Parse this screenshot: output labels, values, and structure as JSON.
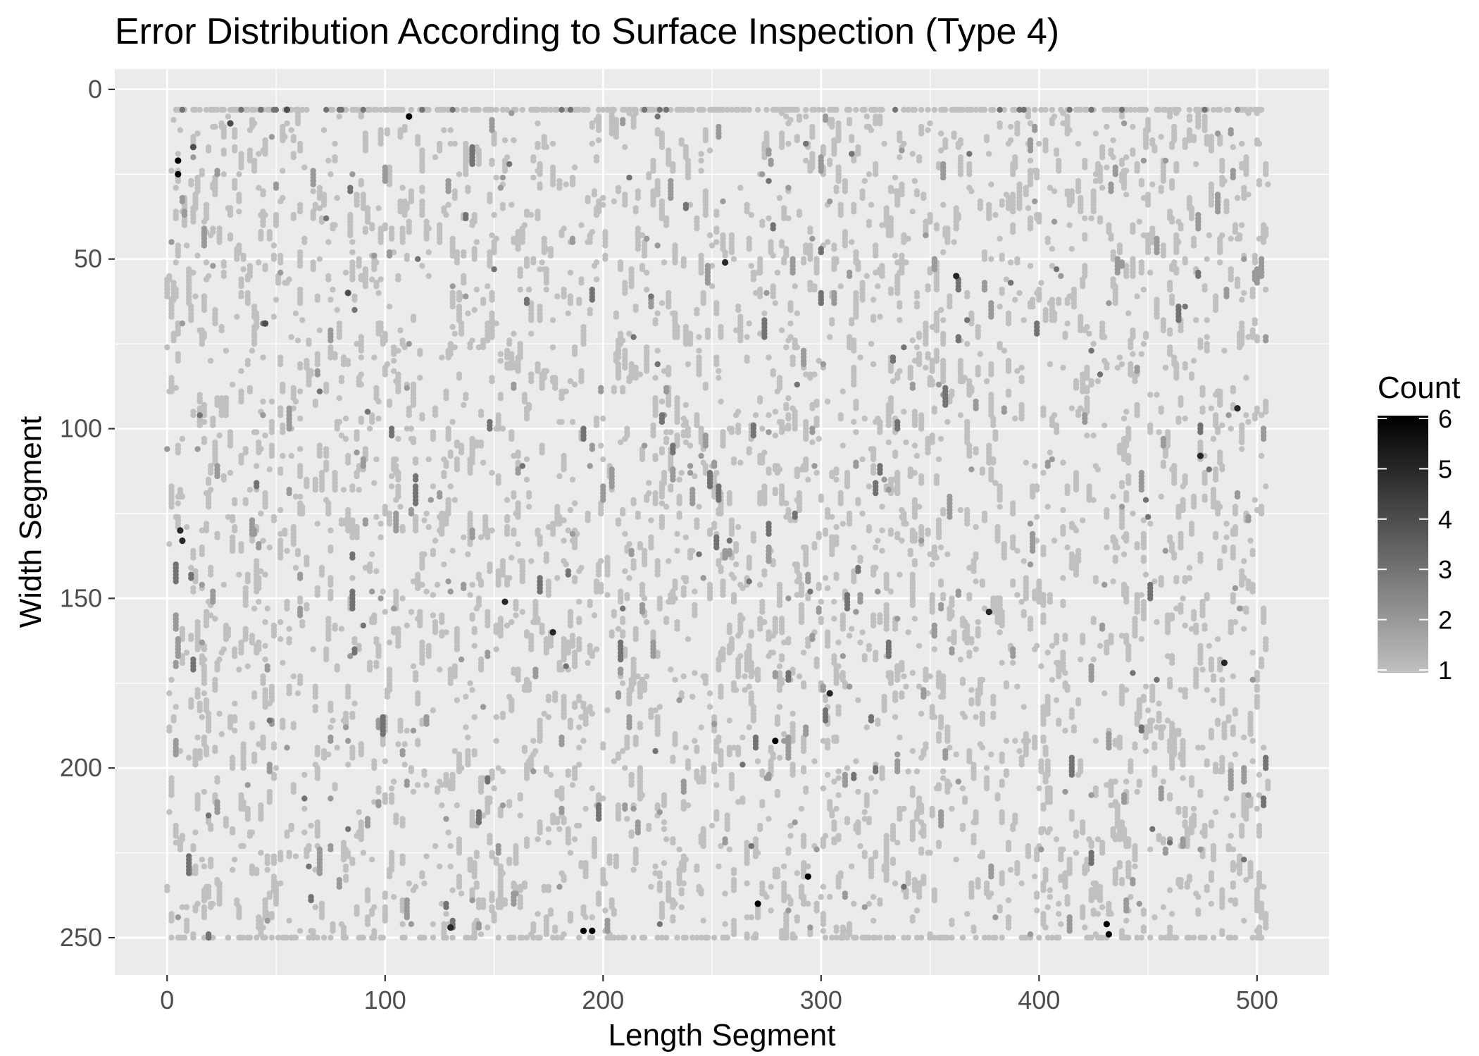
{
  "chart_data": {
    "type": "scatter",
    "title": "Error Distribution According to Surface Inspection (Type 4)",
    "xlabel": "Length Segment",
    "ylabel": "Width Segment",
    "xlim": [
      -24,
      533
    ],
    "ylim": [
      -6,
      261
    ],
    "y_reversed": true,
    "x_ticks": [
      0,
      100,
      200,
      300,
      400,
      500
    ],
    "y_ticks": [
      0,
      50,
      100,
      150,
      200,
      250
    ],
    "x_tick_labels": [
      "0",
      "100",
      "200",
      "300",
      "400",
      "500"
    ],
    "y_tick_labels": [
      "0",
      "50",
      "100",
      "150",
      "200",
      "250"
    ],
    "grid": true,
    "background": "#ebebeb",
    "gridline_color": "#ffffff",
    "legend": {
      "title": "Count",
      "type": "colorbar",
      "range": [
        1,
        6
      ],
      "breaks": [
        1,
        2,
        3,
        4,
        5,
        6
      ],
      "labels": [
        "1",
        "2",
        "3",
        "4",
        "5",
        "6"
      ],
      "low_color": "#c0c0c0",
      "high_color": "#000000",
      "placement": "right"
    },
    "points_description_note": "",
    "x_range_points": [
      0,
      505
    ],
    "y_range_points": [
      6,
      250
    ],
    "count_range": [
      1,
      6
    ],
    "approx_point_count": 9000,
    "highlights": [
      {
        "x": 5,
        "y": 21,
        "count": 6
      },
      {
        "x": 5,
        "y": 25,
        "count": 6
      },
      {
        "x": 6,
        "y": 130,
        "count": 5
      },
      {
        "x": 7,
        "y": 133,
        "count": 5
      },
      {
        "x": 12,
        "y": 17,
        "count": 4
      },
      {
        "x": 29,
        "y": 10,
        "count": 4
      },
      {
        "x": 45,
        "y": 69,
        "count": 4
      },
      {
        "x": 55,
        "y": 6,
        "count": 4
      },
      {
        "x": 83,
        "y": 60,
        "count": 4
      },
      {
        "x": 111,
        "y": 8,
        "count": 6
      },
      {
        "x": 130,
        "y": 247,
        "count": 5
      },
      {
        "x": 155,
        "y": 151,
        "count": 5
      },
      {
        "x": 177,
        "y": 160,
        "count": 5
      },
      {
        "x": 191,
        "y": 248,
        "count": 6
      },
      {
        "x": 195,
        "y": 248,
        "count": 6
      },
      {
        "x": 256,
        "y": 51,
        "count": 5
      },
      {
        "x": 271,
        "y": 240,
        "count": 6
      },
      {
        "x": 279,
        "y": 192,
        "count": 6
      },
      {
        "x": 294,
        "y": 232,
        "count": 6
      },
      {
        "x": 304,
        "y": 178,
        "count": 5
      },
      {
        "x": 362,
        "y": 55,
        "count": 5
      },
      {
        "x": 377,
        "y": 154,
        "count": 5
      },
      {
        "x": 431,
        "y": 246,
        "count": 6
      },
      {
        "x": 432,
        "y": 249,
        "count": 6
      },
      {
        "x": 474,
        "y": 108,
        "count": 5
      },
      {
        "x": 485,
        "y": 169,
        "count": 5
      },
      {
        "x": 491,
        "y": 94,
        "count": 5
      }
    ]
  }
}
